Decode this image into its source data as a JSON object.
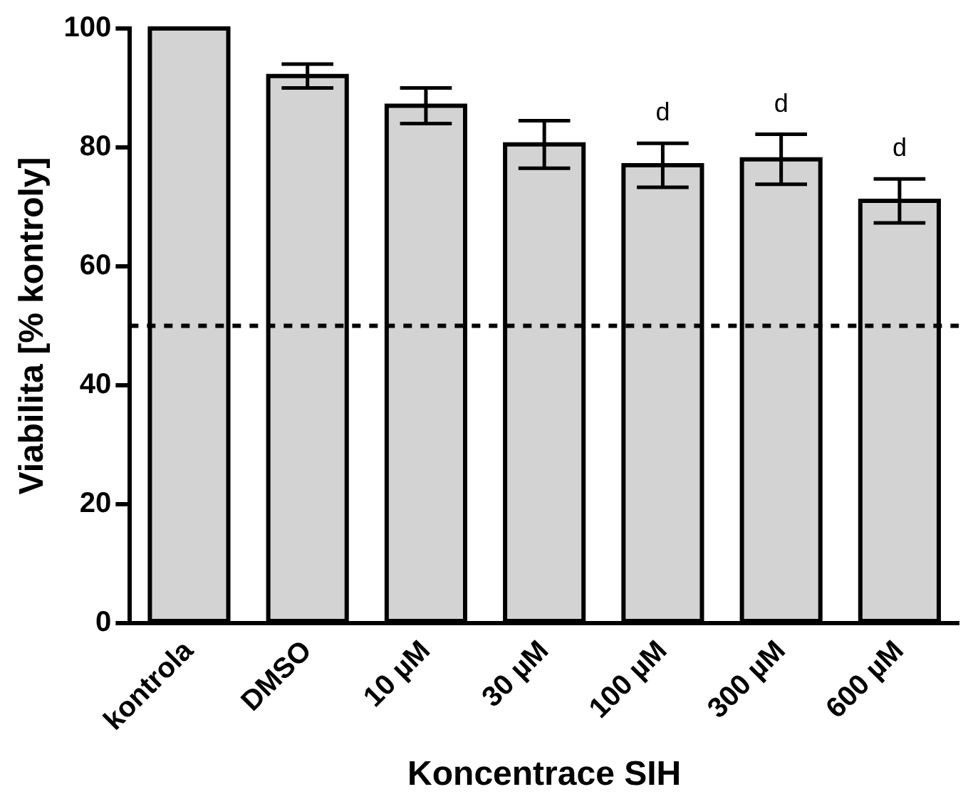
{
  "chart_data": {
    "type": "bar",
    "xlabel": "Koncentrace SIH",
    "ylabel": "Viabilita [% kontroly]",
    "categories": [
      "kontrola",
      "DMSO",
      "10 µM",
      "30 µM",
      "100 µM",
      "300 µM",
      "600 µM"
    ],
    "values": [
      100,
      92,
      87,
      80.5,
      77,
      78,
      71
    ],
    "errors": [
      null,
      2,
      3,
      4,
      3.7,
      4.2,
      3.7
    ],
    "color": "#d3d3d3",
    "ylim": [
      0,
      100
    ],
    "yticks": [
      0,
      20,
      40,
      60,
      80,
      100
    ],
    "grid": false,
    "legend": false,
    "ref_lines": [
      {
        "axis": "y",
        "value": 50,
        "line_style": "dashed",
        "color": "#000000"
      }
    ],
    "annotations": [
      "d",
      "d",
      "d"
    ]
  }
}
